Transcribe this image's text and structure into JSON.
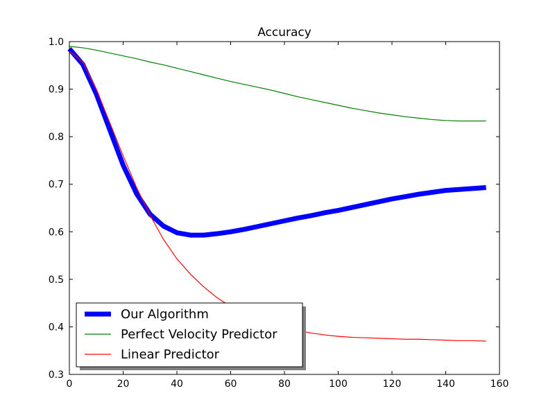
{
  "chart_data": {
    "type": "line",
    "title": "Accuracy",
    "xlabel": "",
    "ylabel": "",
    "xlim": [
      0,
      160
    ],
    "ylim": [
      0.3,
      1.0
    ],
    "xticks": [
      0,
      20,
      40,
      60,
      80,
      100,
      120,
      140,
      160
    ],
    "xtick_labels": [
      "0",
      "20",
      "40",
      "60",
      "80",
      "100",
      "120",
      "140",
      "160"
    ],
    "yticks": [
      0.3,
      0.4,
      0.5,
      0.6,
      0.7,
      0.8,
      0.9,
      1.0
    ],
    "ytick_labels": [
      "0.3",
      "0.4",
      "0.5",
      "0.6",
      "0.7",
      "0.8",
      "0.9",
      "1.0"
    ],
    "grid": false,
    "legend_position": "lower-left",
    "series": [
      {
        "name": "Our Algorithm",
        "color": "#0000ff",
        "x": [
          0,
          5,
          10,
          15,
          20,
          25,
          30,
          35,
          40,
          45,
          50,
          55,
          60,
          65,
          70,
          75,
          80,
          85,
          90,
          95,
          100,
          105,
          110,
          115,
          120,
          125,
          130,
          135,
          140,
          145,
          150,
          155
        ],
        "values": [
          0.985,
          0.952,
          0.89,
          0.815,
          0.74,
          0.68,
          0.637,
          0.612,
          0.598,
          0.593,
          0.593,
          0.596,
          0.6,
          0.605,
          0.611,
          0.617,
          0.623,
          0.629,
          0.634,
          0.64,
          0.645,
          0.651,
          0.657,
          0.663,
          0.669,
          0.674,
          0.679,
          0.683,
          0.687,
          0.689,
          0.691,
          0.693
        ]
      },
      {
        "name": "Perfect Velocity Predictor",
        "color": "#008000",
        "x": [
          0,
          5,
          10,
          15,
          20,
          25,
          30,
          35,
          40,
          45,
          50,
          55,
          60,
          65,
          70,
          75,
          80,
          85,
          90,
          95,
          100,
          105,
          110,
          115,
          120,
          125,
          130,
          135,
          140,
          145,
          150,
          155
        ],
        "values": [
          0.99,
          0.987,
          0.982,
          0.976,
          0.97,
          0.964,
          0.957,
          0.951,
          0.944,
          0.937,
          0.93,
          0.923,
          0.916,
          0.91,
          0.904,
          0.898,
          0.891,
          0.884,
          0.878,
          0.872,
          0.866,
          0.86,
          0.855,
          0.85,
          0.846,
          0.842,
          0.839,
          0.836,
          0.834,
          0.833,
          0.833,
          0.833
        ]
      },
      {
        "name": "Linear Predictor",
        "color": "#ff0000",
        "x": [
          0,
          5,
          10,
          15,
          20,
          25,
          30,
          35,
          40,
          45,
          50,
          55,
          60,
          65,
          70,
          75,
          80,
          85,
          90,
          95,
          100,
          105,
          110,
          115,
          120,
          125,
          130,
          135,
          140,
          145,
          150,
          155
        ],
        "values": [
          0.98,
          0.957,
          0.9,
          0.83,
          0.76,
          0.693,
          0.635,
          0.584,
          0.543,
          0.511,
          0.484,
          0.461,
          0.443,
          0.428,
          0.416,
          0.406,
          0.398,
          0.392,
          0.387,
          0.383,
          0.38,
          0.378,
          0.377,
          0.376,
          0.375,
          0.374,
          0.374,
          0.373,
          0.372,
          0.371,
          0.371,
          0.37
        ]
      }
    ]
  }
}
